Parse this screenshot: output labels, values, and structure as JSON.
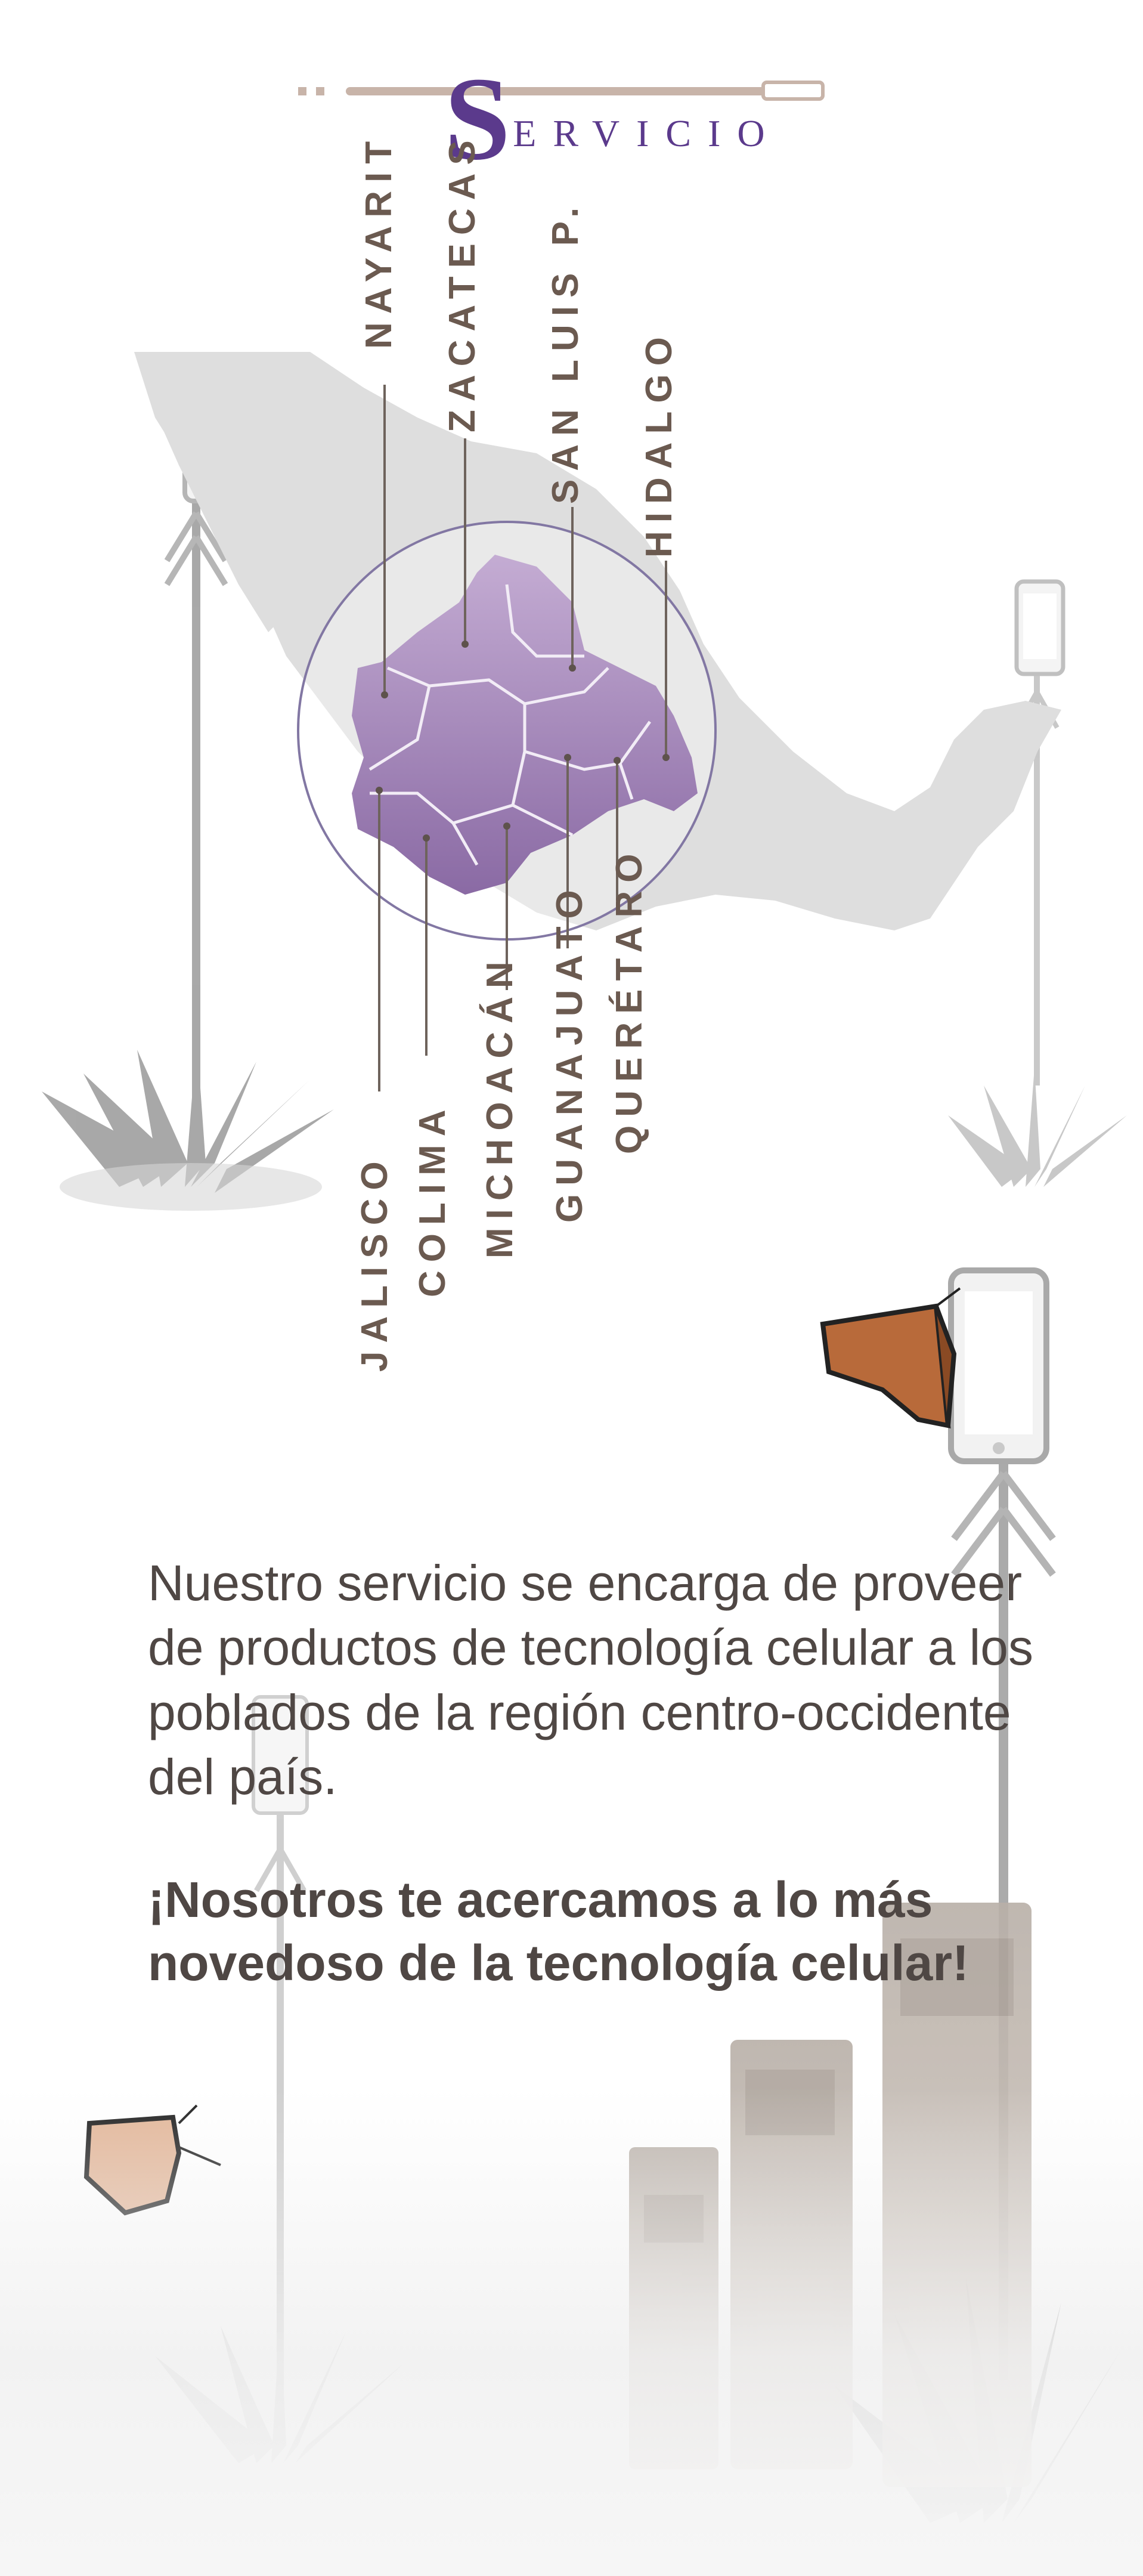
{
  "header": {
    "title_initial": "S",
    "title_rest": "ERVICIO"
  },
  "map": {
    "states_north": [
      "NAYARIT",
      "ZACATECAS",
      "SAN LUIS P.",
      "HIDALGO"
    ],
    "states_south": [
      "JALISCO",
      "COLIMA",
      "MICHOACÁN",
      "GUANAJUATO",
      "QUERÉTARO"
    ]
  },
  "description": {
    "paragraph": "Nuestro servicio se encarga de proveer de productos de tecnología celular a los poblados de la región centro-occidente del país.",
    "tagline": "¡Nosotros te acercamos a lo más novedoso de la tecnología celular!"
  },
  "colors": {
    "brand_purple": "#5b3a8c",
    "region_purple": "#9b7fb3",
    "label_brown": "#6b5a50",
    "body_text": "#4f4744",
    "map_gray": "#dcdcdc"
  }
}
